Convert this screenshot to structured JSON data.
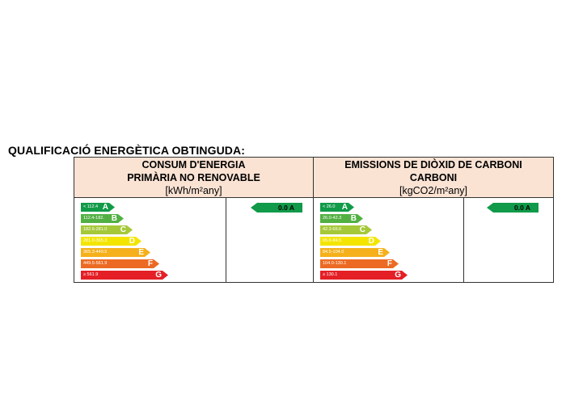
{
  "title": "QUALIFICACIÓ ENERGÈTICA OBTINGUDA:",
  "left": {
    "header_line1": "CONSUM D'ENERGIA",
    "header_line2": "PRIMÀRIA NO RENOVABLE",
    "unit": "[kWh/m²any]",
    "scale": [
      {
        "range": "< 112.4",
        "letter": "A",
        "color": "#119a48"
      },
      {
        "range": "112.4-182.",
        "letter": "B",
        "color": "#52b043"
      },
      {
        "range": "182.6-281.0",
        "letter": "C",
        "color": "#a5c838"
      },
      {
        "range": "281.0-365.3",
        "letter": "D",
        "color": "#f4e500"
      },
      {
        "range": "365.3-449.5",
        "letter": "E",
        "color": "#f5b01b"
      },
      {
        "range": "449.5-561.9",
        "letter": "F",
        "color": "#ec6a23"
      },
      {
        "range": "≥ 561.9",
        "letter": "G",
        "color": "#e41f26"
      }
    ],
    "result": "0.0 A"
  },
  "right": {
    "header_line1": "EMISSIONS DE DIÒXID DE CARBONI",
    "header_line2": "CARBONI",
    "unit": "[kgCO2/m²any]",
    "scale": [
      {
        "range": "< 26.0",
        "letter": "A",
        "color": "#119a48"
      },
      {
        "range": "26.0-42.3",
        "letter": "B",
        "color": "#52b043"
      },
      {
        "range": "42.3-65.6",
        "letter": "C",
        "color": "#a5c838"
      },
      {
        "range": "65.6-84.5",
        "letter": "D",
        "color": "#f4e500"
      },
      {
        "range": "84.5-104.0",
        "letter": "E",
        "color": "#f5b01b"
      },
      {
        "range": "104.0-130.1",
        "letter": "F",
        "color": "#ec6a23"
      },
      {
        "range": "≥ 130.1",
        "letter": "G",
        "color": "#e41f26"
      }
    ],
    "result": "0.0 A"
  }
}
